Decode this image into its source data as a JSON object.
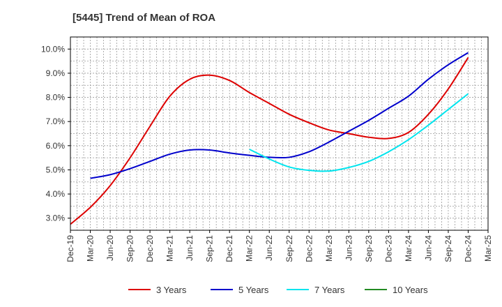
{
  "chart_data": {
    "type": "line",
    "title": "[5445]  Trend of Mean of ROA",
    "x": [
      "Dec-19",
      "Mar-20",
      "Jun-20",
      "Sep-20",
      "Dec-20",
      "Mar-21",
      "Jun-21",
      "Sep-21",
      "Dec-21",
      "Mar-22",
      "Jun-22",
      "Sep-22",
      "Dec-22",
      "Mar-23",
      "Jun-23",
      "Sep-23",
      "Dec-23",
      "Mar-24",
      "Jun-24",
      "Sep-24",
      "Dec-24",
      "Mar-25"
    ],
    "y_ticks": [
      "3.0%",
      "4.0%",
      "5.0%",
      "6.0%",
      "7.0%",
      "8.0%",
      "9.0%",
      "10.0%"
    ],
    "ylim": [
      2.5,
      10.5
    ],
    "grid": true,
    "legend_position": "bottom",
    "series": [
      {
        "name": "3 Years",
        "color": "#dd0000",
        "values": [
          2.75,
          3.45,
          4.35,
          5.5,
          6.8,
          8.05,
          8.75,
          8.92,
          8.7,
          8.2,
          7.75,
          7.3,
          6.95,
          6.65,
          6.5,
          6.35,
          6.3,
          6.55,
          7.3,
          8.35,
          9.65,
          null
        ]
      },
      {
        "name": "5 Years",
        "color": "#0000cc",
        "values": [
          null,
          4.65,
          4.8,
          5.05,
          5.35,
          5.65,
          5.82,
          5.82,
          5.7,
          5.6,
          5.52,
          5.52,
          5.75,
          6.15,
          6.6,
          7.05,
          7.55,
          8.05,
          8.75,
          9.35,
          9.85,
          null
        ]
      },
      {
        "name": "7 Years",
        "color": "#00e5ee",
        "values": [
          null,
          null,
          null,
          null,
          null,
          null,
          null,
          null,
          null,
          5.85,
          5.45,
          5.12,
          4.98,
          4.95,
          5.1,
          5.35,
          5.75,
          6.25,
          6.85,
          7.5,
          8.15,
          null
        ]
      },
      {
        "name": "10 Years",
        "color": "#228b22",
        "values": [
          null,
          null,
          null,
          null,
          null,
          null,
          null,
          null,
          null,
          null,
          null,
          null,
          null,
          null,
          null,
          null,
          null,
          null,
          null,
          null,
          null,
          null
        ]
      }
    ]
  }
}
